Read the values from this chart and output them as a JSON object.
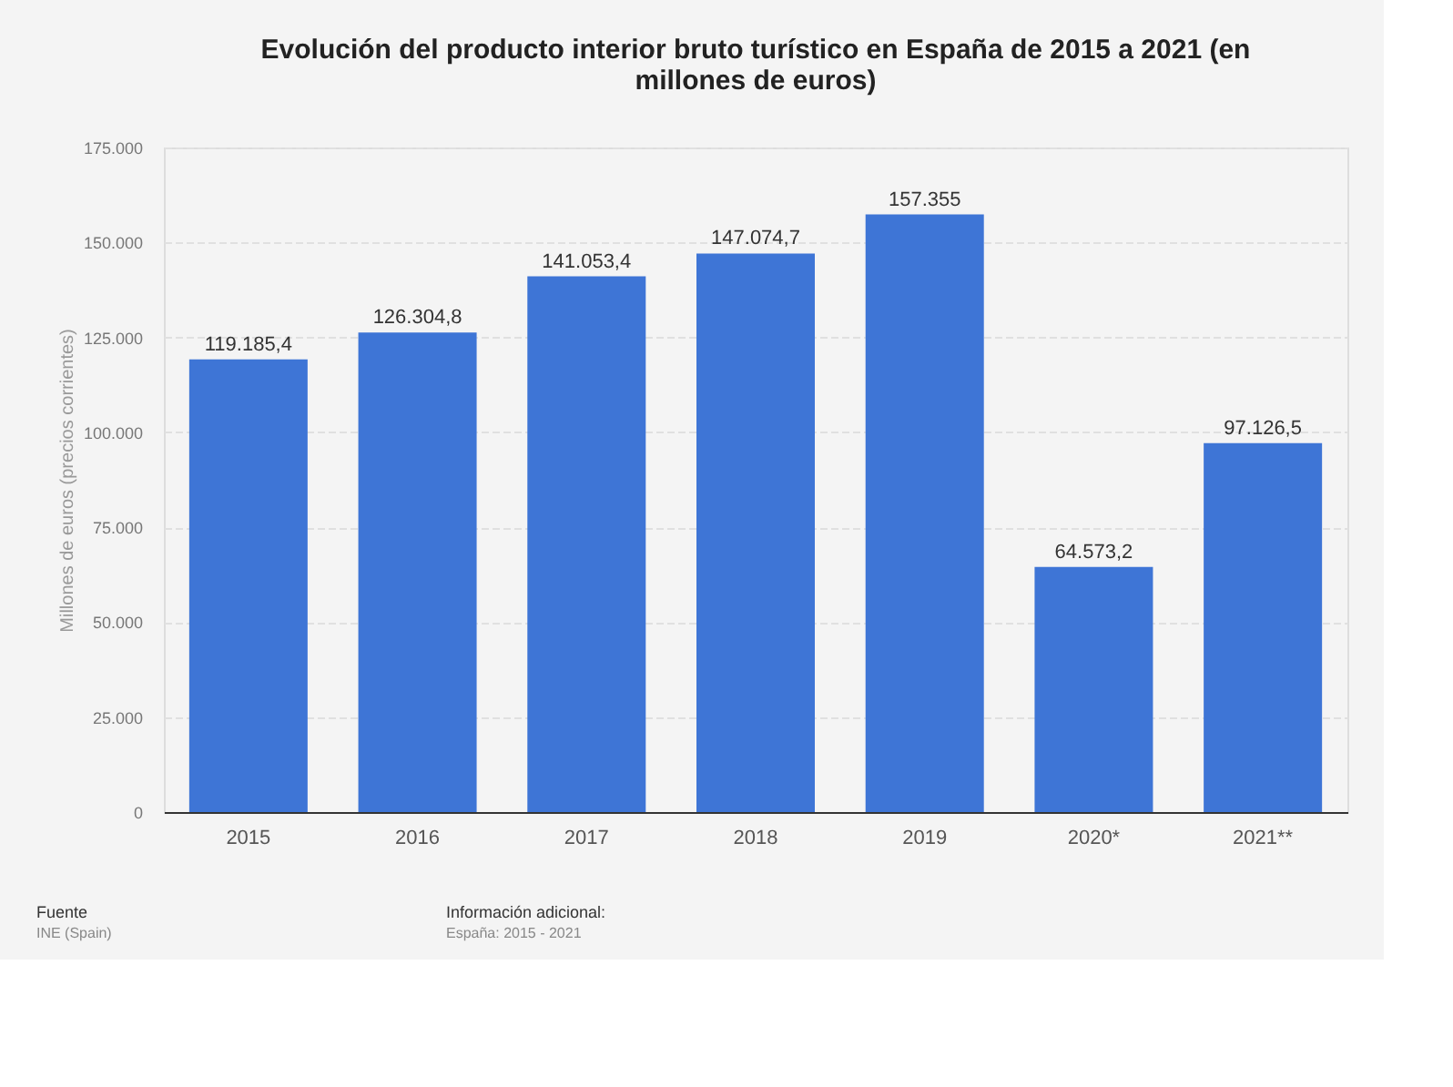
{
  "chart_data": {
    "type": "bar",
    "title": "Evolución del producto interior bruto turístico en España de 2015 a 2021 (en millones de euros)",
    "ylabel": "Millones de euros (precios corrientes)",
    "categories": [
      "2015",
      "2016",
      "2017",
      "2018",
      "2019",
      "2020*",
      "2021**"
    ],
    "values": [
      119185.4,
      126304.8,
      141053.4,
      147074.7,
      157355,
      64573.2,
      97126.5
    ],
    "value_labels": [
      "119.185,4",
      "126.304,8",
      "141.053,4",
      "147.074,7",
      "157.355",
      "64.573,2",
      "97.126,5"
    ],
    "color": "#3e75d6",
    "ylim": [
      0,
      175000
    ],
    "yticks": [
      {
        "value": 0,
        "label": "0"
      },
      {
        "value": 25000,
        "label": "25.000"
      },
      {
        "value": 50000,
        "label": "50.000"
      },
      {
        "value": 75000,
        "label": "75.000"
      },
      {
        "value": 100000,
        "label": "100.000"
      },
      {
        "value": 125000,
        "label": "125.000"
      },
      {
        "value": 150000,
        "label": "150.000"
      },
      {
        "value": 175000,
        "label": "175.000"
      }
    ],
    "grid": "y",
    "annotations": [
      "Fuente",
      "INE (Spain)",
      "Información adicional:",
      "España: 2015 - 2021"
    ]
  }
}
